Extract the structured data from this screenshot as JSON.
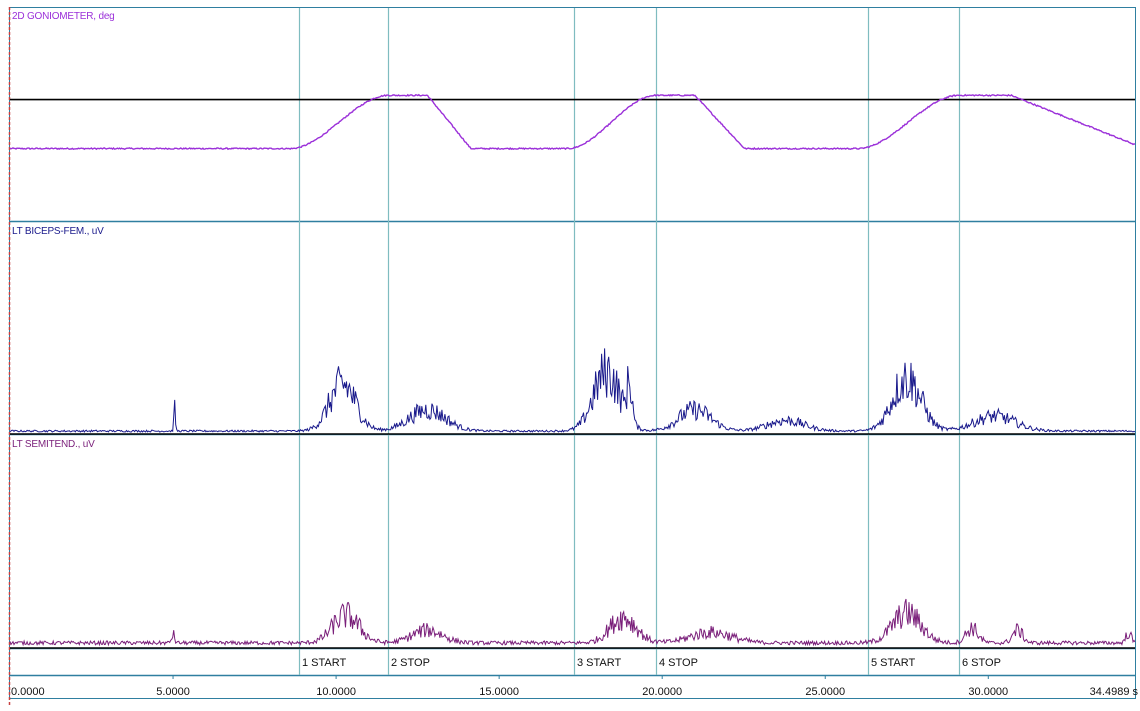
{
  "colors": {
    "frame": "#2f7fa0",
    "marker_line": "#7fbcc0",
    "goniometer": "#9b30d9",
    "biceps": "#1a1a8c",
    "semitend": "#7a1f7a",
    "baseline": "#000000",
    "left_edge": "#c84040"
  },
  "chart_data": {
    "type": "line",
    "x_unit": "s",
    "xlim": [
      0,
      34.4989
    ],
    "x_ticks": [
      "0.0000",
      "5.0000",
      "10.0000",
      "15.0000",
      "20.0000",
      "25.0000",
      "30.0000",
      "34.4989 s"
    ],
    "x_tick_values": [
      0,
      5,
      10,
      15,
      20,
      25,
      30,
      34.4989
    ],
    "markers": [
      {
        "time": 8.85,
        "label": "1 START"
      },
      {
        "time": 11.6,
        "label": "2 STOP"
      },
      {
        "time": 17.3,
        "label": "3 START"
      },
      {
        "time": 19.8,
        "label": "4 STOP"
      },
      {
        "time": 26.3,
        "label": "5 START"
      },
      {
        "time": 29.1,
        "label": "6 STOP"
      }
    ],
    "channels": [
      {
        "name": "2D GONIOMETER, deg",
        "kind": "goniometer",
        "ylim": [
          0,
          1
        ],
        "reference_level": 0.57,
        "baseline_level": 0.34,
        "plateau_level": 0.59,
        "cycles": [
          {
            "rise_start": 8.6,
            "plateau_start": 11.6,
            "plateau_end": 12.8,
            "fall_end": 14.2
          },
          {
            "rise_start": 17.1,
            "plateau_start": 19.8,
            "plateau_end": 21.0,
            "fall_end": 22.6
          },
          {
            "rise_start": 26.0,
            "plateau_start": 29.1,
            "plateau_end": 30.7,
            "fall_end": 35.0
          }
        ]
      },
      {
        "name": "LT BICEPS-FEM., uV",
        "kind": "emg",
        "ylim": [
          0,
          1
        ],
        "noise_floor": 0.01,
        "bursts": [
          {
            "center": 5.05,
            "width": 0.08,
            "amp": 0.1
          },
          {
            "center": 10.2,
            "width": 1.3,
            "amp": 0.22
          },
          {
            "center": 12.8,
            "width": 1.8,
            "amp": 0.1
          },
          {
            "center": 18.3,
            "width": 1.3,
            "amp": 0.28
          },
          {
            "center": 19.0,
            "width": 0.25,
            "amp": 0.18
          },
          {
            "center": 21.0,
            "width": 1.6,
            "amp": 0.1
          },
          {
            "center": 23.8,
            "width": 1.8,
            "amp": 0.05
          },
          {
            "center": 27.5,
            "width": 1.4,
            "amp": 0.25
          },
          {
            "center": 30.2,
            "width": 2.0,
            "amp": 0.07
          }
        ]
      },
      {
        "name": "LT SEMITEND., uV",
        "kind": "emg",
        "ylim": [
          0,
          1
        ],
        "noise_floor": 0.02,
        "bursts": [
          {
            "center": 5.0,
            "width": 0.15,
            "amp": 0.04
          },
          {
            "center": 10.3,
            "width": 1.3,
            "amp": 0.13
          },
          {
            "center": 12.8,
            "width": 1.5,
            "amp": 0.06
          },
          {
            "center": 18.8,
            "width": 1.3,
            "amp": 0.12
          },
          {
            "center": 21.5,
            "width": 2.0,
            "amp": 0.05
          },
          {
            "center": 27.5,
            "width": 1.4,
            "amp": 0.14
          },
          {
            "center": 29.5,
            "width": 0.6,
            "amp": 0.07
          },
          {
            "center": 30.9,
            "width": 0.5,
            "amp": 0.06
          },
          {
            "center": 34.3,
            "width": 0.25,
            "amp": 0.05
          }
        ]
      }
    ]
  }
}
